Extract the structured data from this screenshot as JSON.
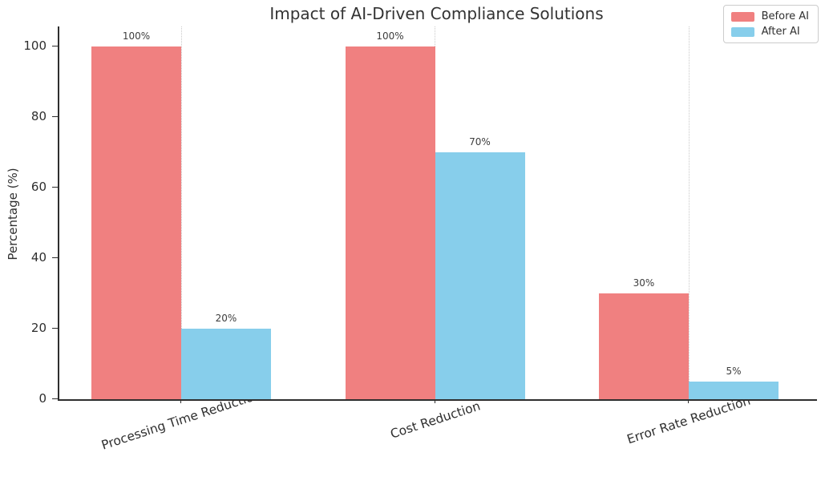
{
  "chart_data": {
    "type": "bar",
    "title": "Impact of AI-Driven Compliance Solutions",
    "ylabel": "Percentage (%)",
    "xlabel": "",
    "categories": [
      "Processing Time Reduction",
      "Cost Reduction",
      "Error Rate Reduction"
    ],
    "series": [
      {
        "name": "Before AI",
        "color": "#F08080",
        "values": [
          100,
          100,
          30
        ],
        "labels": [
          "100%",
          "100%",
          "30%"
        ]
      },
      {
        "name": "After AI",
        "color": "#87CEEB",
        "values": [
          20,
          70,
          5
        ],
        "labels": [
          "20%",
          "70%",
          "5%"
        ]
      }
    ],
    "yticks": [
      "0",
      "20",
      "40",
      "60",
      "80",
      "100"
    ],
    "ylim": [
      0,
      105
    ],
    "legend_position": "upper-right",
    "grid": "dotted vertical line at each category center",
    "axis_color": "#2e2e2e",
    "gridline_color": "#c9c9c9",
    "background_color": "#ffffff"
  }
}
